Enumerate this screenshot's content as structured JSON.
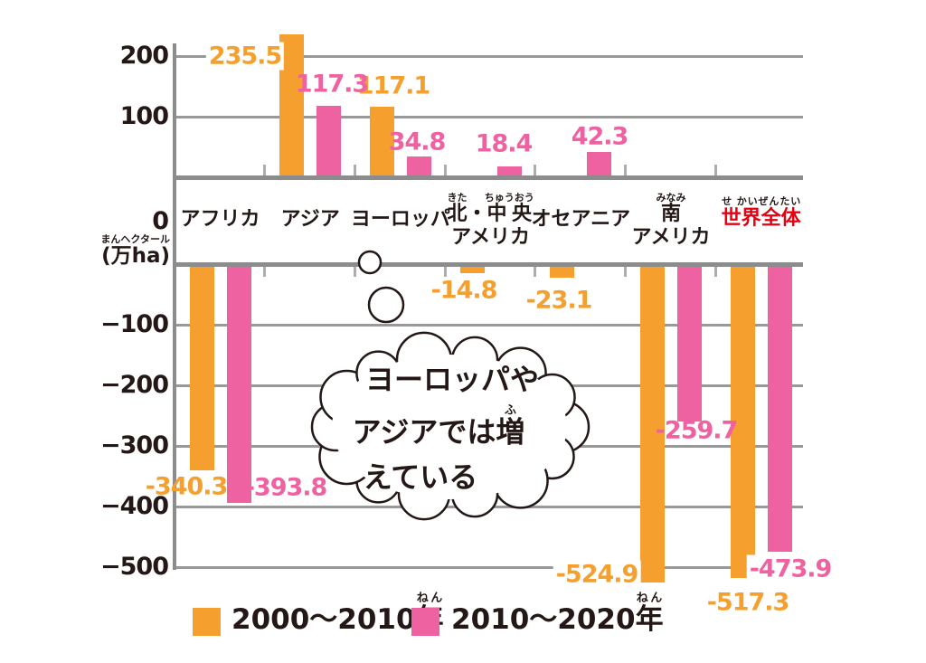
{
  "chart_data": {
    "type": "bar",
    "y_unit": "(万ha)",
    "y_unit_furigana": "まんヘクタール",
    "y_axis_zero_label": "0",
    "ylim": [
      -550,
      240
    ],
    "grid": true,
    "legend_position": "bottom",
    "y_ticks": [
      {
        "value": 200,
        "label": "200"
      },
      {
        "value": 100,
        "label": "100"
      },
      {
        "value": -100,
        "label": "−100"
      },
      {
        "value": -200,
        "label": "−200"
      },
      {
        "value": -300,
        "label": "−300"
      },
      {
        "value": -400,
        "label": "−400"
      },
      {
        "value": -500,
        "label": "−500"
      }
    ],
    "categories": [
      {
        "key": "africa",
        "name": "アフリカ",
        "line1": [
          {
            "t": "アフリカ"
          }
        ]
      },
      {
        "key": "asia",
        "name": "アジア",
        "line1": [
          {
            "t": "アジア"
          }
        ]
      },
      {
        "key": "europe",
        "name": "ヨーロッパ",
        "line1": [
          {
            "t": "ヨーロッパ"
          }
        ]
      },
      {
        "key": "north-central-america",
        "name": "北・中央アメリカ",
        "line1": [
          {
            "t": "北",
            "r": "きた"
          },
          {
            "t": "・"
          },
          {
            "t": "中央",
            "r": "ちゅうおう"
          }
        ],
        "line2": "アメリカ"
      },
      {
        "key": "oceania",
        "name": "オセアニア",
        "line1": [
          {
            "t": "オセアニア"
          }
        ]
      },
      {
        "key": "south-america",
        "name": "南アメリカ",
        "line1": [
          {
            "t": "南",
            "r": "みなみ"
          }
        ],
        "line2": "アメリカ"
      },
      {
        "key": "world",
        "name": "世界全体",
        "line1": [
          {
            "t": "世界全体",
            "r": "せ かいぜんたい"
          }
        ],
        "color": "#E60012"
      }
    ],
    "series": [
      {
        "key": "2000-2010",
        "name": "2000〜2010年",
        "name_segments": [
          {
            "t": "2000〜2010"
          },
          {
            "t": "年",
            "r": "ねん"
          }
        ],
        "color": "#F5A02E",
        "values": [
          -340.3,
          235.5,
          117.1,
          -14.8,
          -23.1,
          -524.9,
          -517.3
        ]
      },
      {
        "key": "2010-2020",
        "name": "2010〜2020年",
        "name_segments": [
          {
            "t": "2010〜2020"
          },
          {
            "t": "年",
            "r": "ねん"
          }
        ],
        "color": "#EE62A2",
        "values": [
          -393.8,
          117.3,
          34.8,
          18.4,
          42.3,
          -259.7,
          -473.9
        ]
      }
    ],
    "value_labels": [
      [
        "-340.3",
        "-393.8"
      ],
      [
        "235.5",
        "117.3"
      ],
      [
        "117.1",
        "34.8"
      ],
      [
        "-14.8",
        "18.4"
      ],
      [
        "-23.1",
        "42.3"
      ],
      [
        "-524.9",
        "-259.7"
      ],
      [
        "-517.3",
        "-473.9"
      ]
    ],
    "annotation": {
      "lines": [
        [
          {
            "t": "ヨーロッパや"
          }
        ],
        [
          {
            "t": "アジアでは"
          },
          {
            "t": "増",
            "r": "ふ"
          }
        ],
        [
          {
            "t": "えている"
          }
        ]
      ]
    }
  },
  "colors": {
    "orange": "#F5A02E",
    "pink": "#EE62A2",
    "red": "#E60012",
    "gridline": "#999999",
    "axis": "#8C8C8C",
    "tick": "#ADADAD",
    "text": "#231815",
    "bubble_stroke": "#231815"
  }
}
